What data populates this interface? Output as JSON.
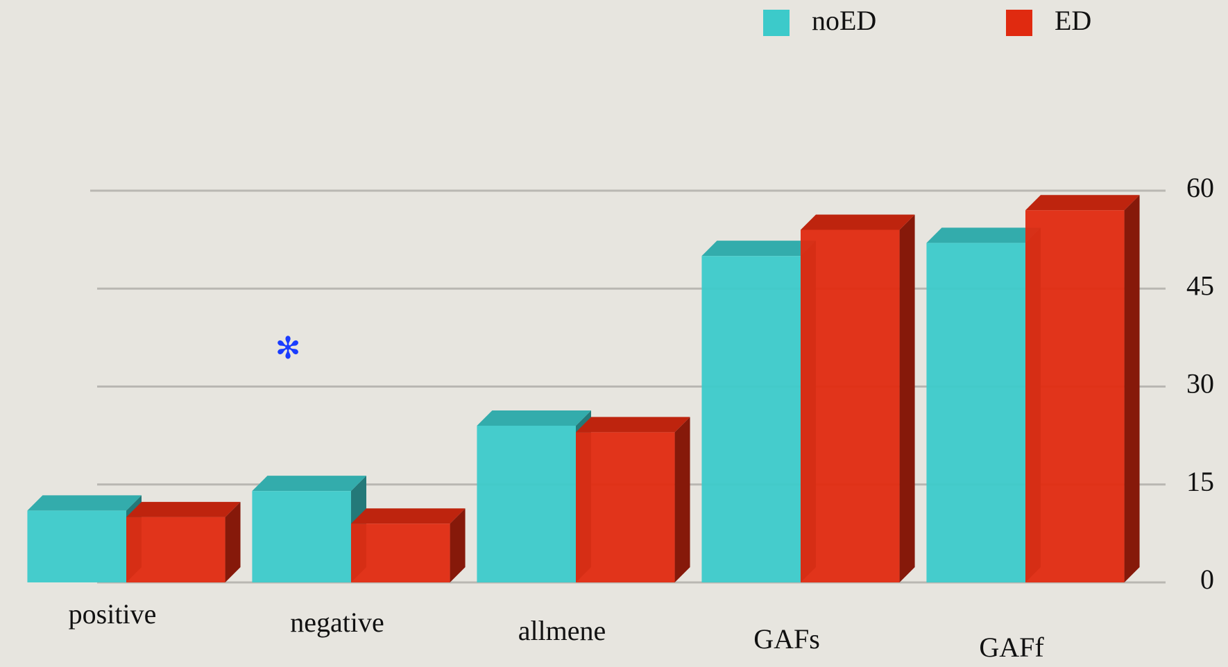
{
  "chart_data": {
    "type": "bar3d",
    "categories": [
      "positive",
      "negative",
      "allmene",
      "GAFs",
      "GAFf"
    ],
    "series": [
      {
        "name": "noED",
        "color": "#3ccaca",
        "values": [
          11,
          14,
          24,
          50,
          52
        ]
      },
      {
        "name": "ED",
        "color": "#e02a10",
        "values": [
          10,
          9,
          23,
          54,
          57
        ]
      }
    ],
    "ylim": [
      0,
      60
    ],
    "yticks": [
      0,
      15,
      30,
      45,
      60
    ],
    "grid": true,
    "annotations": [
      {
        "text": "✻",
        "color": "#1a3cff"
      }
    ]
  }
}
